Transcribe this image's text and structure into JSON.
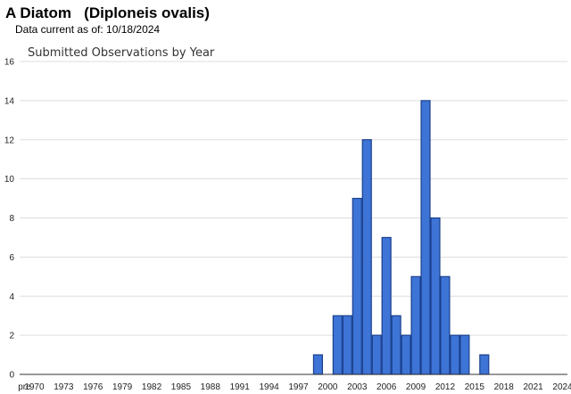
{
  "header": {
    "species_title": "A Diatom   (Diploneis ovalis)",
    "data_current": "Data current as of: 10/18/2024"
  },
  "colors": {
    "bar_fill": "#3d74d6",
    "bar_stroke": "#1a3f8c",
    "grid": "#dddddd",
    "axis": "#333333"
  },
  "chart_data": {
    "type": "bar",
    "title": "Submitted Observations by Year",
    "xlabel": "",
    "ylabel": "",
    "ylim": [
      0,
      16
    ],
    "y_ticks": [
      0,
      2,
      4,
      6,
      8,
      10,
      12,
      14,
      16
    ],
    "grid": true,
    "x_tick_labels": [
      "pre",
      "1970",
      "1973",
      "1976",
      "1979",
      "1982",
      "1985",
      "1988",
      "1991",
      "1994",
      "1997",
      "2000",
      "2003",
      "2006",
      "2009",
      "2012",
      "2015",
      "2018",
      "2021",
      "2024"
    ],
    "categories": [
      "pre",
      "1970",
      "1971",
      "1972",
      "1973",
      "1974",
      "1975",
      "1976",
      "1977",
      "1978",
      "1979",
      "1980",
      "1981",
      "1982",
      "1983",
      "1984",
      "1985",
      "1986",
      "1987",
      "1988",
      "1989",
      "1990",
      "1991",
      "1992",
      "1993",
      "1994",
      "1995",
      "1996",
      "1997",
      "1998",
      "1999",
      "2000",
      "2001",
      "2002",
      "2003",
      "2004",
      "2005",
      "2006",
      "2007",
      "2008",
      "2009",
      "2010",
      "2011",
      "2012",
      "2013",
      "2014",
      "2015",
      "2016",
      "2017",
      "2018",
      "2019",
      "2020",
      "2021",
      "2022",
      "2023",
      "2024"
    ],
    "values": [
      0,
      0,
      0,
      0,
      0,
      0,
      0,
      0,
      0,
      0,
      0,
      0,
      0,
      0,
      0,
      0,
      0,
      0,
      0,
      0,
      0,
      0,
      0,
      0,
      0,
      0,
      0,
      0,
      0,
      0,
      1,
      0,
      3,
      3,
      9,
      12,
      2,
      7,
      3,
      2,
      5,
      14,
      8,
      5,
      2,
      2,
      0,
      1,
      0,
      0,
      0,
      0,
      0,
      0,
      0,
      0
    ]
  }
}
